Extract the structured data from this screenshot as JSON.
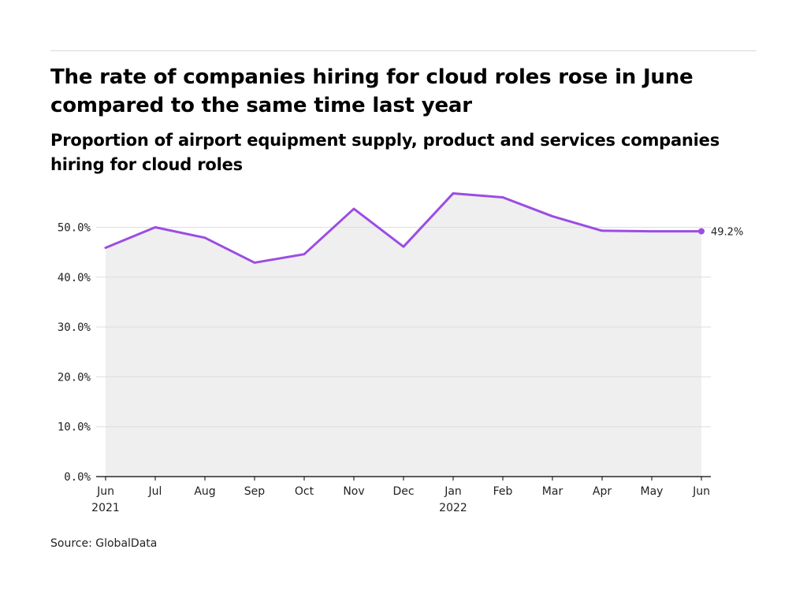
{
  "header": {
    "title": "The rate of companies hiring for cloud roles rose in June compared to the same time last year",
    "subtitle": "Proportion of airport equipment supply, product and services companies hiring for cloud roles"
  },
  "footer": {
    "source": "Source: GlobalData"
  },
  "colors": {
    "line": "#9b4de3",
    "area": "#efefef",
    "grid": "#dedede",
    "axis": "#000000"
  },
  "chart_data": {
    "type": "area",
    "title": "The rate of companies hiring for cloud roles rose in June compared to the same time last year",
    "subtitle": "Proportion of airport equipment supply, product and services companies hiring for cloud roles",
    "x": [
      "Jun 2021",
      "Jul 2021",
      "Aug 2021",
      "Sep 2021",
      "Oct 2021",
      "Nov 2021",
      "Dec 2021",
      "Jan 2022",
      "Feb 2022",
      "Mar 2022",
      "Apr 2022",
      "May 2022",
      "Jun 2022"
    ],
    "x_tick_labels": [
      {
        "month": "Jun",
        "year": "2021"
      },
      {
        "month": "Jul",
        "year": ""
      },
      {
        "month": "Aug",
        "year": ""
      },
      {
        "month": "Sep",
        "year": ""
      },
      {
        "month": "Oct",
        "year": ""
      },
      {
        "month": "Nov",
        "year": ""
      },
      {
        "month": "Dec",
        "year": ""
      },
      {
        "month": "Jan",
        "year": "2022"
      },
      {
        "month": "Feb",
        "year": ""
      },
      {
        "month": "Mar",
        "year": ""
      },
      {
        "month": "Apr",
        "year": ""
      },
      {
        "month": "May",
        "year": ""
      },
      {
        "month": "Jun",
        "year": ""
      }
    ],
    "series": [
      {
        "values": [
          45.9,
          50.0,
          47.9,
          42.9,
          44.6,
          53.7,
          46.1,
          56.8,
          56.0,
          52.2,
          49.3,
          49.2,
          49.2
        ]
      }
    ],
    "y_ticks": [
      {
        "value": 0,
        "label": "0.0%"
      },
      {
        "value": 10,
        "label": "10.0%"
      },
      {
        "value": 20,
        "label": "20.0%"
      },
      {
        "value": 30,
        "label": "30.0%"
      },
      {
        "value": 40,
        "label": "40.0%"
      },
      {
        "value": 50,
        "label": "50.0%"
      }
    ],
    "ylim": [
      0,
      60
    ],
    "end_label": "49.2%",
    "grid": true,
    "legend": "none"
  }
}
